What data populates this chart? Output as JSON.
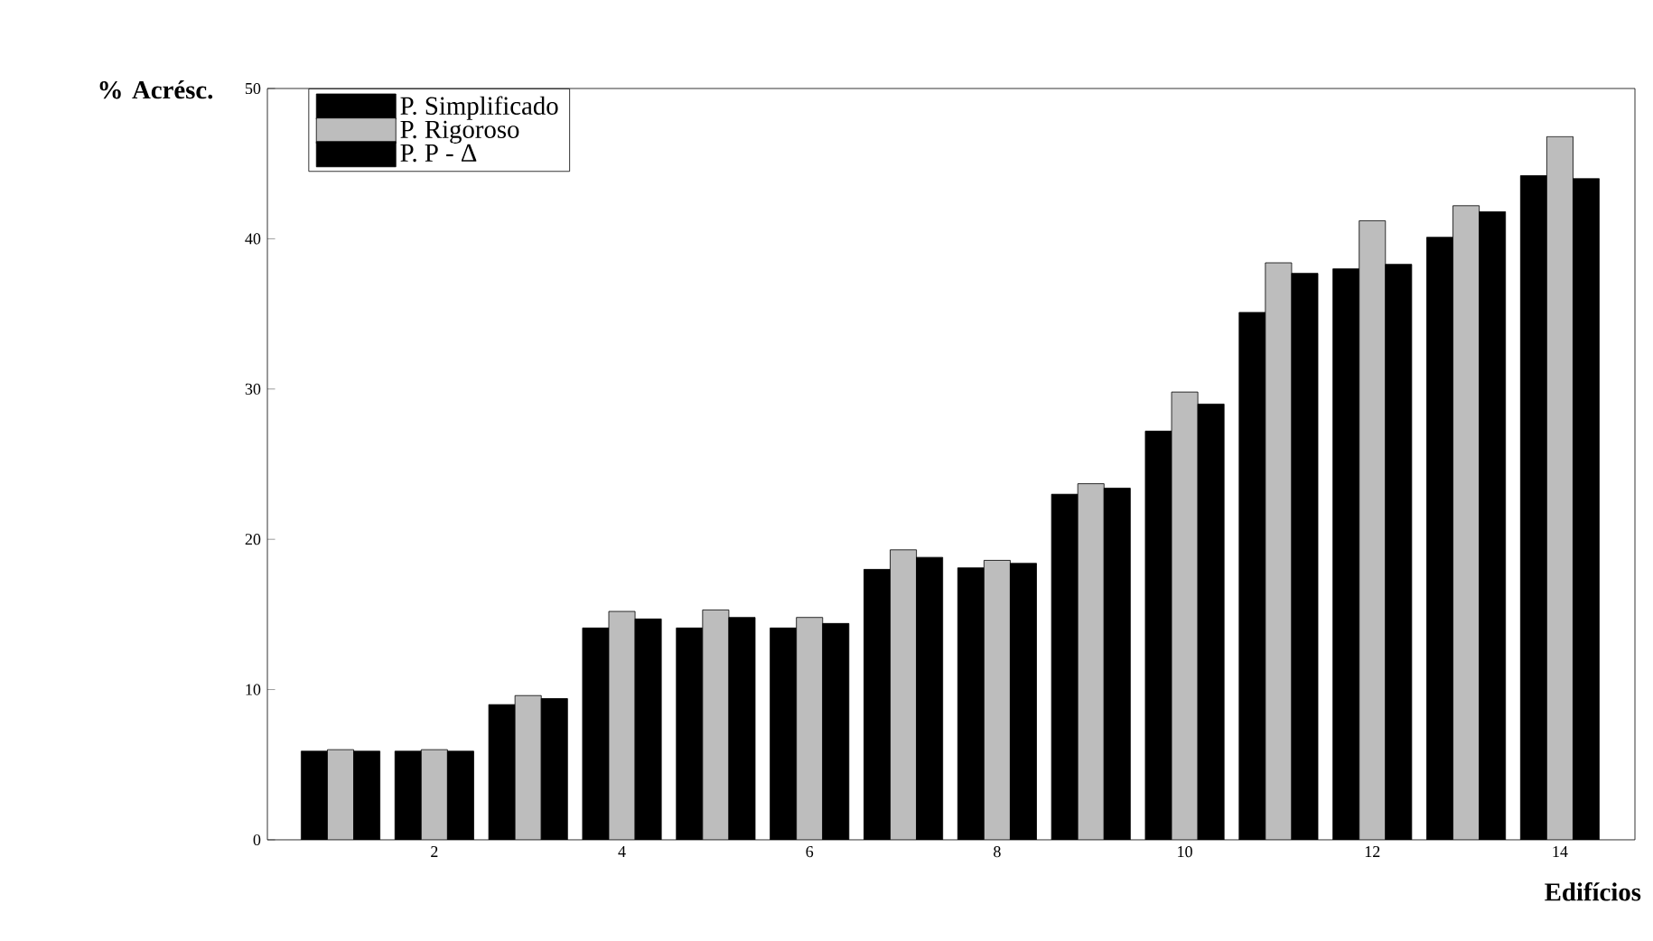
{
  "chart_data": {
    "type": "bar",
    "xlabel": "Edifícios",
    "ylabel": "% Acrésc.",
    "categories": [
      null,
      "2",
      null,
      "4",
      null,
      "6",
      null,
      "8",
      null,
      "10",
      null,
      "12",
      null,
      "14"
    ],
    "series": [
      {
        "name": "P. Simplificado",
        "color": "#000000",
        "values": [
          5.9,
          5.9,
          9.0,
          14.1,
          14.1,
          14.1,
          18.0,
          18.1,
          23.0,
          27.2,
          35.1,
          38.0,
          40.1,
          44.2
        ]
      },
      {
        "name": "P. Rigoroso",
        "color": "#bdbdbd",
        "values": [
          6.0,
          6.0,
          9.6,
          15.2,
          15.3,
          14.8,
          19.3,
          18.6,
          23.7,
          29.8,
          38.4,
          41.2,
          42.2,
          46.8
        ]
      },
      {
        "name": "P. P - Δ",
        "color": "#000000",
        "values": [
          5.9,
          5.9,
          9.4,
          14.7,
          14.8,
          14.4,
          18.8,
          18.4,
          23.4,
          29.0,
          37.7,
          38.3,
          41.8,
          44.0
        ]
      }
    ],
    "ylim": [
      0,
      50
    ],
    "yticks": [
      0,
      10,
      20,
      30,
      40,
      50
    ],
    "grid": false,
    "legend": "top left"
  }
}
